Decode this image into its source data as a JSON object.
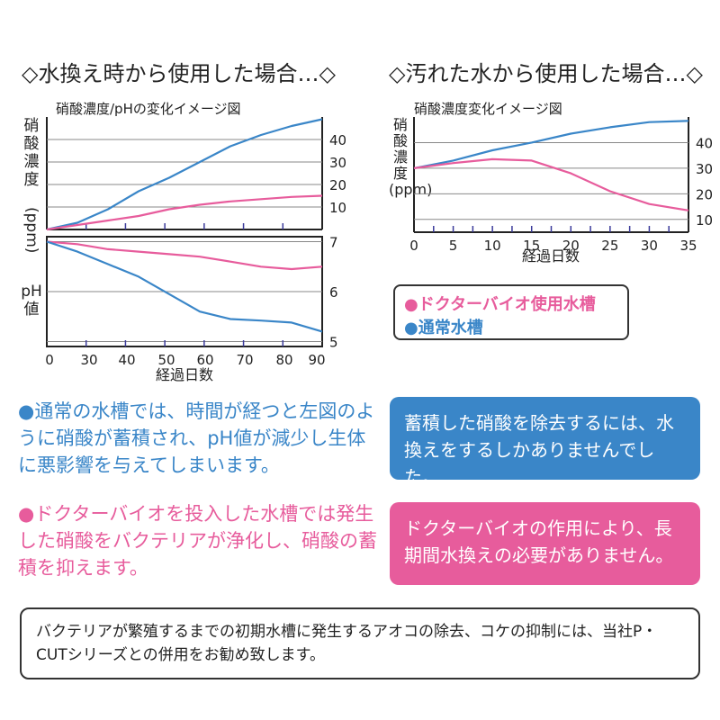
{
  "colors": {
    "pink": "#e75c9c",
    "blue": "#3a86c8",
    "note_border": "#333333"
  },
  "headings": {
    "left": "◇水換え時から使用した場合…◇",
    "right": "◇汚れた水から使用した場合…◇"
  },
  "left_chart_title": "硝酸濃度/pHの変化イメージ図",
  "right_chart_title": "硝酸濃度変化イメージ図",
  "left_ylabel_top": "硝\n酸\n濃\n度",
  "left_ylabel_unit": "(ppm)",
  "left_ylabel_bottom": "pH\n値",
  "right_ylabel": "硝\n酸\n濃\n度\n(ppm)",
  "legend": {
    "pink_label": "●ドクターバイオ使用水槽",
    "blue_label": "●通常水槽"
  },
  "bullets": [
    {
      "text": "●通常の水槽では、時間が経つと左図のように硝酸が蓄積され、pH値が減少し生体に悪影響を与えてしまいます。"
    },
    {
      "text": "●ドクターバイオを投入した水槽では発生した硝酸をバクテリアが浄化し、硝酸の蓄積を抑えます。"
    }
  ],
  "callouts": {
    "blue": "蓄積した硝酸を除去するには、水換えをするしかありませんでした。",
    "pink": "ドクターバイオの作用により、長期間水換えの必要がありません。"
  },
  "note": "バクテリアが繁殖するまでの初期水槽に発生するアオコの除去、コケの抑制には、当社P・CUTシリーズとの併用をお勧め致します。",
  "chart_data": [
    {
      "type": "line",
      "title": "硝酸濃度/pHの変化イメージ図",
      "ylabel": "硝酸濃度(ppm)",
      "xlim": [
        0,
        90
      ],
      "ylim": [
        0,
        50
      ],
      "yticks": [
        "10",
        "20",
        "30",
        "40"
      ],
      "series": [
        {
          "color": "#3a86c8",
          "x": [
            0,
            10,
            20,
            30,
            40,
            50,
            60,
            70,
            80,
            90
          ],
          "y": [
            0,
            3,
            9,
            17,
            23,
            30,
            37,
            42,
            46,
            49
          ]
        },
        {
          "color": "#e75c9c",
          "x": [
            0,
            10,
            20,
            30,
            40,
            50,
            60,
            70,
            80,
            90
          ],
          "y": [
            0,
            2,
            4,
            6,
            9,
            11,
            12.5,
            13.5,
            14.5,
            15
          ]
        }
      ]
    },
    {
      "type": "line",
      "ylabel": "pH値",
      "xlabel": "経過日数",
      "x_ticks": [
        "0",
        "30",
        "40",
        "50",
        "60",
        "70",
        "80",
        "90"
      ],
      "xlim": [
        0,
        90
      ],
      "ylim": [
        4.9,
        7.1
      ],
      "yticks": [
        "5",
        "6",
        "7"
      ],
      "series": [
        {
          "color": "#e75c9c",
          "x": [
            0,
            10,
            20,
            30,
            40,
            50,
            60,
            70,
            80,
            90
          ],
          "y": [
            7.0,
            6.95,
            6.85,
            6.8,
            6.75,
            6.7,
            6.6,
            6.5,
            6.45,
            6.5
          ]
        },
        {
          "color": "#3a86c8",
          "x": [
            0,
            10,
            20,
            30,
            40,
            50,
            60,
            70,
            80,
            90
          ],
          "y": [
            7.0,
            6.8,
            6.55,
            6.3,
            5.95,
            5.6,
            5.45,
            5.42,
            5.38,
            5.2
          ]
        }
      ]
    },
    {
      "type": "line",
      "title": "硝酸濃度変化イメージ図",
      "ylabel": "硝酸濃度(ppm)",
      "xlabel": "経過日数",
      "xlim": [
        0,
        35
      ],
      "ylim": [
        5,
        50
      ],
      "x_ticks": [
        "0",
        "5",
        "10",
        "15",
        "20",
        "25",
        "30",
        "35"
      ],
      "yticks": [
        "10",
        "20",
        "30",
        "40"
      ],
      "series": [
        {
          "color": "#3a86c8",
          "x": [
            0,
            5,
            10,
            15,
            20,
            25,
            30,
            35
          ],
          "y": [
            30,
            33,
            37,
            40,
            43.5,
            46,
            48,
            48.5
          ]
        },
        {
          "color": "#e75c9c",
          "x": [
            0,
            5,
            10,
            15,
            20,
            25,
            30,
            35
          ],
          "y": [
            30,
            32,
            33.5,
            33,
            28,
            21,
            16,
            13.5
          ]
        }
      ]
    }
  ]
}
